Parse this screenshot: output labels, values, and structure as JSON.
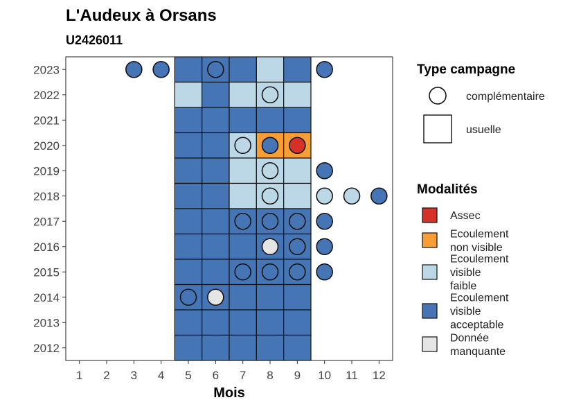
{
  "chart_data": {
    "type": "heatmap",
    "title": "L'Audeux à Orsans",
    "subtitle": "U2426011",
    "xlabel": "Mois",
    "ylabel": "",
    "x_ticks": [
      1,
      2,
      3,
      4,
      5,
      6,
      7,
      8,
      9,
      10,
      11,
      12
    ],
    "y_ticks": [
      2012,
      2013,
      2014,
      2015,
      2016,
      2017,
      2018,
      2019,
      2020,
      2021,
      2022,
      2023
    ],
    "xlim": [
      0.5,
      12.5
    ],
    "ylim": [
      2011.5,
      2023.5
    ],
    "colors": {
      "assec": "#d73027",
      "non_visible": "#f99d35",
      "faible": "#bcd7e6",
      "acceptable": "#4575b4",
      "manquante": "#e5e5e5"
    },
    "legend_type": {
      "title": "Type campagne",
      "items": [
        {
          "label": "complémentaire",
          "shape": "circle"
        },
        {
          "label": "usuelle",
          "shape": "square"
        }
      ]
    },
    "legend_modalites": {
      "title": "Modalités",
      "items": [
        {
          "key": "assec",
          "lines": [
            "Assec"
          ]
        },
        {
          "key": "non_visible",
          "lines": [
            "Ecoulement",
            "non visible"
          ]
        },
        {
          "key": "faible",
          "lines": [
            "Ecoulement",
            "visible",
            "faible"
          ]
        },
        {
          "key": "acceptable",
          "lines": [
            "Ecoulement",
            "visible",
            "acceptable"
          ]
        },
        {
          "key": "manquante",
          "lines": [
            "Donnée",
            "manquante"
          ]
        }
      ]
    },
    "usuelle": [
      {
        "year": 2023,
        "months": [
          "acceptable",
          "acceptable",
          "acceptable",
          "faible",
          "acceptable"
        ]
      },
      {
        "year": 2022,
        "months": [
          "faible",
          "acceptable",
          "faible",
          "faible",
          "faible"
        ]
      },
      {
        "year": 2021,
        "months": [
          "acceptable",
          "acceptable",
          "acceptable",
          "acceptable",
          "acceptable"
        ]
      },
      {
        "year": 2020,
        "months": [
          "acceptable",
          "acceptable",
          "faible",
          "non_visible",
          "non_visible"
        ]
      },
      {
        "year": 2019,
        "months": [
          "acceptable",
          "acceptable",
          "faible",
          "faible",
          "faible"
        ]
      },
      {
        "year": 2018,
        "months": [
          "acceptable",
          "acceptable",
          "faible",
          "faible",
          "faible"
        ]
      },
      {
        "year": 2017,
        "months": [
          "acceptable",
          "acceptable",
          "acceptable",
          "acceptable",
          "acceptable"
        ]
      },
      {
        "year": 2016,
        "months": [
          "acceptable",
          "acceptable",
          "acceptable",
          "acceptable",
          "acceptable"
        ]
      },
      {
        "year": 2015,
        "months": [
          "acceptable",
          "acceptable",
          "acceptable",
          "acceptable",
          "acceptable"
        ]
      },
      {
        "year": 2014,
        "months": [
          "acceptable",
          "acceptable",
          "acceptable",
          "acceptable",
          "acceptable"
        ]
      },
      {
        "year": 2013,
        "months": [
          "acceptable",
          "acceptable",
          "acceptable",
          "acceptable",
          "acceptable"
        ]
      },
      {
        "year": 2012,
        "months": [
          "acceptable",
          "acceptable",
          "acceptable",
          "acceptable",
          "acceptable"
        ]
      }
    ],
    "usuelle_first_month": 5,
    "complementaire": [
      {
        "year": 2023,
        "month": 3,
        "value": "acceptable"
      },
      {
        "year": 2023,
        "month": 4,
        "value": "acceptable"
      },
      {
        "year": 2023,
        "month": 6,
        "value": "acceptable"
      },
      {
        "year": 2023,
        "month": 10,
        "value": "acceptable"
      },
      {
        "year": 2022,
        "month": 8,
        "value": "faible"
      },
      {
        "year": 2020,
        "month": 7,
        "value": "faible"
      },
      {
        "year": 2020,
        "month": 8,
        "value": "acceptable"
      },
      {
        "year": 2020,
        "month": 9,
        "value": "assec"
      },
      {
        "year": 2019,
        "month": 8,
        "value": "faible"
      },
      {
        "year": 2019,
        "month": 10,
        "value": "acceptable"
      },
      {
        "year": 2018,
        "month": 8,
        "value": "faible"
      },
      {
        "year": 2018,
        "month": 10,
        "value": "faible"
      },
      {
        "year": 2018,
        "month": 11,
        "value": "faible"
      },
      {
        "year": 2018,
        "month": 12,
        "value": "acceptable"
      },
      {
        "year": 2017,
        "month": 7,
        "value": "acceptable"
      },
      {
        "year": 2017,
        "month": 8,
        "value": "acceptable"
      },
      {
        "year": 2017,
        "month": 9,
        "value": "acceptable"
      },
      {
        "year": 2017,
        "month": 10,
        "value": "acceptable"
      },
      {
        "year": 2016,
        "month": 8,
        "value": "manquante"
      },
      {
        "year": 2016,
        "month": 9,
        "value": "acceptable"
      },
      {
        "year": 2016,
        "month": 10,
        "value": "acceptable"
      },
      {
        "year": 2015,
        "month": 7,
        "value": "acceptable"
      },
      {
        "year": 2015,
        "month": 8,
        "value": "acceptable"
      },
      {
        "year": 2015,
        "month": 9,
        "value": "acceptable"
      },
      {
        "year": 2015,
        "month": 10,
        "value": "acceptable"
      },
      {
        "year": 2014,
        "month": 5,
        "value": "acceptable"
      },
      {
        "year": 2014,
        "month": 6,
        "value": "manquante"
      }
    ]
  }
}
